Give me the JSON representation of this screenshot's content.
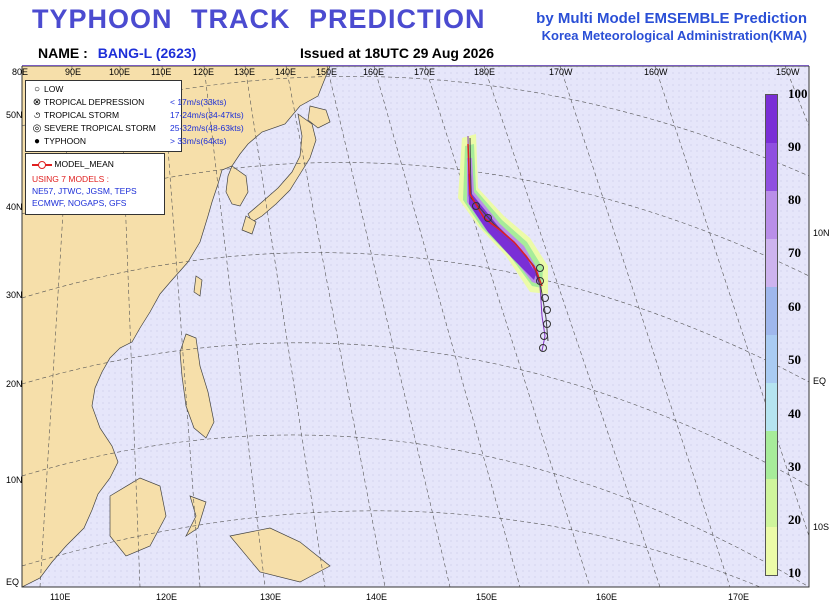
{
  "header": {
    "title": "TYPHOON TRACK PREDICTION",
    "org_line1": "by Multi Model EMSEMBLE Prediction",
    "org_line2": "Korea Meteorological Administration(KMA)",
    "name_label": "NAME :",
    "name_value": "BANG-L (2623)",
    "issued": "Issued at  18UTC 29 Aug 2026"
  },
  "lon_top": [
    "80E",
    "90E",
    "100E",
    "110E",
    "120E",
    "130E",
    "140E",
    "150E",
    "160E",
    "170E",
    "180E",
    "170W",
    "160W",
    "150W"
  ],
  "lon_bottom": [
    "110E",
    "120E",
    "130E",
    "140E",
    "150E",
    "160E",
    "170E"
  ],
  "lat_left": [
    "50N",
    "40N",
    "30N",
    "20N",
    "10N",
    "EQ"
  ],
  "lat_right": [
    "10N",
    "EQ",
    "10S"
  ],
  "legend": {
    "items": [
      {
        "icon": "low-icon",
        "glyph": "○",
        "label": "LOW",
        "speed": ""
      },
      {
        "icon": "tropical-depression-icon",
        "glyph": "⊗",
        "label": "TROPICAL DEPRESSION",
        "speed": "< 17m/s(33kts)"
      },
      {
        "icon": "tropical-storm-icon",
        "glyph": "૭",
        "label": "TROPICAL STORM",
        "speed": "17-24m/s(34-47kts)"
      },
      {
        "icon": "severe-tropical-storm-icon",
        "glyph": "◎",
        "label": "SEVERE TROPICAL STORM",
        "speed": "25-32m/s(48-63kts)"
      },
      {
        "icon": "typhoon-icon",
        "glyph": "●",
        "label": "TYPHOON",
        "speed": "> 33m/s(64kts)"
      }
    ],
    "model_mean": "MODEL_MEAN",
    "using": "USING 7 MODELS :",
    "models1": "NE57, JTWC, JGSM, TEPS",
    "models2": "ECMWF, NOGAPS, GFS"
  },
  "colorbar": {
    "ticks": [
      "100",
      "90",
      "80",
      "70",
      "60",
      "50",
      "40",
      "30",
      "20",
      "10"
    ],
    "colors": [
      "#7a2fd6",
      "#8f4fe0",
      "#b98ee8",
      "#cdb3ee",
      "#9fb7ec",
      "#a9cbf2",
      "#b5e4f0",
      "#a7ec9a",
      "#cff59c",
      "#ecfba8"
    ]
  },
  "colors": {
    "land": "#f6dfaa",
    "ocean": "#e6e6fa",
    "track": "#d01060",
    "title": "#4b4bd0"
  }
}
